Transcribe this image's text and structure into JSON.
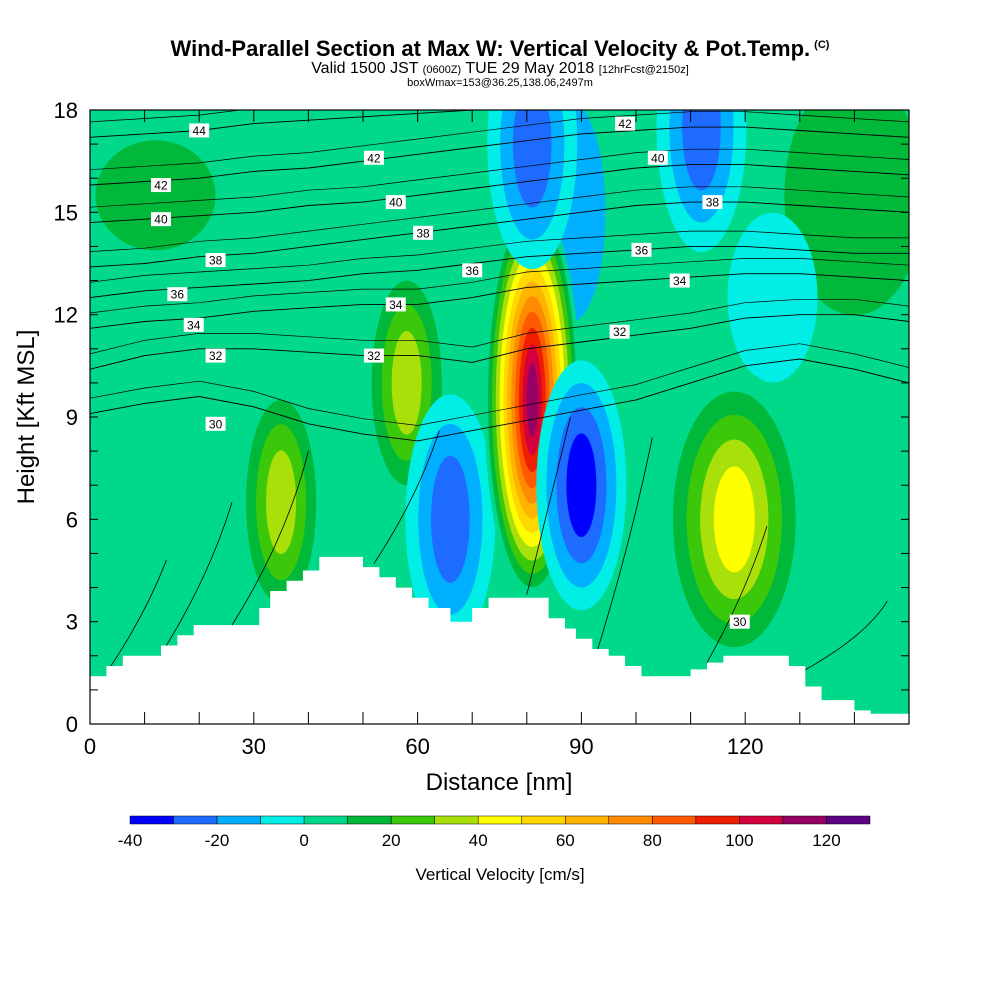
{
  "title": {
    "main": "Wind-Parallel Section at Max W: Vertical Velocity & Pot.Temp.",
    "copyright": "(C)",
    "valid_prefix": "Valid 1500 JST",
    "valid_utc": "(0600Z)",
    "valid_date": "TUE 29 May 2018",
    "forecast": "[12hrFcst@2150z]",
    "box_info": "boxWmax=153@36.25,138.06,2497m"
  },
  "chart_data": {
    "type": "heatmap",
    "xlabel": "Distance [nm]",
    "ylabel": "Height [Kft MSL]",
    "xlim": [
      0,
      150
    ],
    "ylim": [
      0,
      18
    ],
    "x_ticks": [
      "0",
      "30",
      "60",
      "90",
      "120"
    ],
    "x_tick_values": [
      0,
      30,
      60,
      90,
      120
    ],
    "y_ticks": [
      "0",
      "3",
      "6",
      "9",
      "12",
      "15",
      "18"
    ],
    "y_tick_values": [
      0,
      3,
      6,
      9,
      12,
      15,
      18
    ],
    "colorbar": {
      "title": "Vertical Velocity [cm/s]",
      "levels": [
        -40,
        -30,
        -20,
        -10,
        0,
        10,
        20,
        30,
        40,
        50,
        60,
        70,
        80,
        90,
        100,
        110,
        120,
        130
      ],
      "labels": [
        "-40",
        "-20",
        "0",
        "20",
        "40",
        "60",
        "80",
        "100",
        "120"
      ],
      "label_values": [
        -40,
        -20,
        0,
        20,
        40,
        60,
        80,
        100,
        120
      ],
      "colors": [
        "#0000ff",
        "#1e6cff",
        "#00b0ff",
        "#00eee6",
        "#00d88a",
        "#00b83a",
        "#3cc80a",
        "#aae00a",
        "#ffff00",
        "#ffd800",
        "#ffb400",
        "#ff8c00",
        "#ff5a00",
        "#f01e00",
        "#d2003c",
        "#960064",
        "#5a0082"
      ]
    },
    "features": [
      {
        "name": "updraft",
        "x": 35,
        "z": 6.5,
        "w": 45
      },
      {
        "name": "updraft",
        "x": 58,
        "z": 10,
        "w": 40
      },
      {
        "name": "downdraft",
        "x": 66,
        "z": 6,
        "w": -30
      },
      {
        "name": "main updraft",
        "x": 81,
        "z": 9.5,
        "w": 125
      },
      {
        "name": "downdraft",
        "x": 90,
        "z": 7,
        "w": -40
      },
      {
        "name": "updraft",
        "x": 118,
        "z": 6,
        "w": 55
      },
      {
        "name": "downdraft",
        "x": 112,
        "z": 17.5,
        "w": -35
      },
      {
        "name": "downdraft",
        "x": 81,
        "z": 17,
        "w": -35
      }
    ],
    "terrain_profile": {
      "x": [
        0,
        3,
        6,
        10,
        13,
        16,
        19,
        23,
        27,
        31,
        33,
        36,
        39,
        42,
        46,
        50,
        53,
        56,
        59,
        62,
        66,
        70,
        73,
        76,
        80,
        84,
        87,
        89,
        92,
        95,
        98,
        101,
        104,
        107,
        110,
        113,
        116,
        120,
        124,
        128,
        131,
        134,
        137,
        140,
        143,
        146,
        150
      ],
      "z": [
        1.4,
        1.7,
        2.0,
        2.0,
        2.3,
        2.6,
        2.9,
        2.9,
        2.9,
        3.4,
        3.9,
        4.2,
        4.5,
        4.9,
        4.9,
        4.6,
        4.3,
        4.0,
        3.7,
        3.4,
        3.0,
        3.4,
        3.7,
        3.7,
        3.7,
        3.1,
        2.8,
        2.5,
        2.2,
        2.0,
        1.7,
        1.4,
        1.4,
        1.4,
        1.6,
        1.8,
        2.0,
        2.0,
        2.0,
        1.7,
        1.1,
        0.7,
        0.7,
        0.4,
        0.3,
        0.3,
        0.3
      ]
    },
    "theta_contours": {
      "levels": [
        30,
        32,
        34,
        36,
        38,
        40,
        42,
        44
      ],
      "labels": [
        {
          "text": "44",
          "x": 20,
          "y": 17.4
        },
        {
          "text": "42",
          "x": 13,
          "y": 15.8
        },
        {
          "text": "40",
          "x": 13,
          "y": 14.8
        },
        {
          "text": "38",
          "x": 23,
          "y": 13.6
        },
        {
          "text": "36",
          "x": 16,
          "y": 12.6
        },
        {
          "text": "34",
          "x": 19,
          "y": 11.7
        },
        {
          "text": "32",
          "x": 23,
          "y": 10.8
        },
        {
          "text": "30",
          "x": 23,
          "y": 8.8
        },
        {
          "text": "42",
          "x": 52,
          "y": 16.6
        },
        {
          "text": "40",
          "x": 56,
          "y": 15.3
        },
        {
          "text": "38",
          "x": 61,
          "y": 14.4
        },
        {
          "text": "36",
          "x": 70,
          "y": 13.3
        },
        {
          "text": "34",
          "x": 56,
          "y": 12.3
        },
        {
          "text": "32",
          "x": 52,
          "y": 10.8
        },
        {
          "text": "42",
          "x": 98,
          "y": 17.6
        },
        {
          "text": "40",
          "x": 104,
          "y": 16.6
        },
        {
          "text": "38",
          "x": 114,
          "y": 15.3
        },
        {
          "text": "36",
          "x": 101,
          "y": 13.9
        },
        {
          "text": "34",
          "x": 108,
          "y": 13.0
        },
        {
          "text": "32",
          "x": 97,
          "y": 11.5
        },
        {
          "text": "30",
          "x": 119,
          "y": 3.0
        }
      ]
    }
  }
}
